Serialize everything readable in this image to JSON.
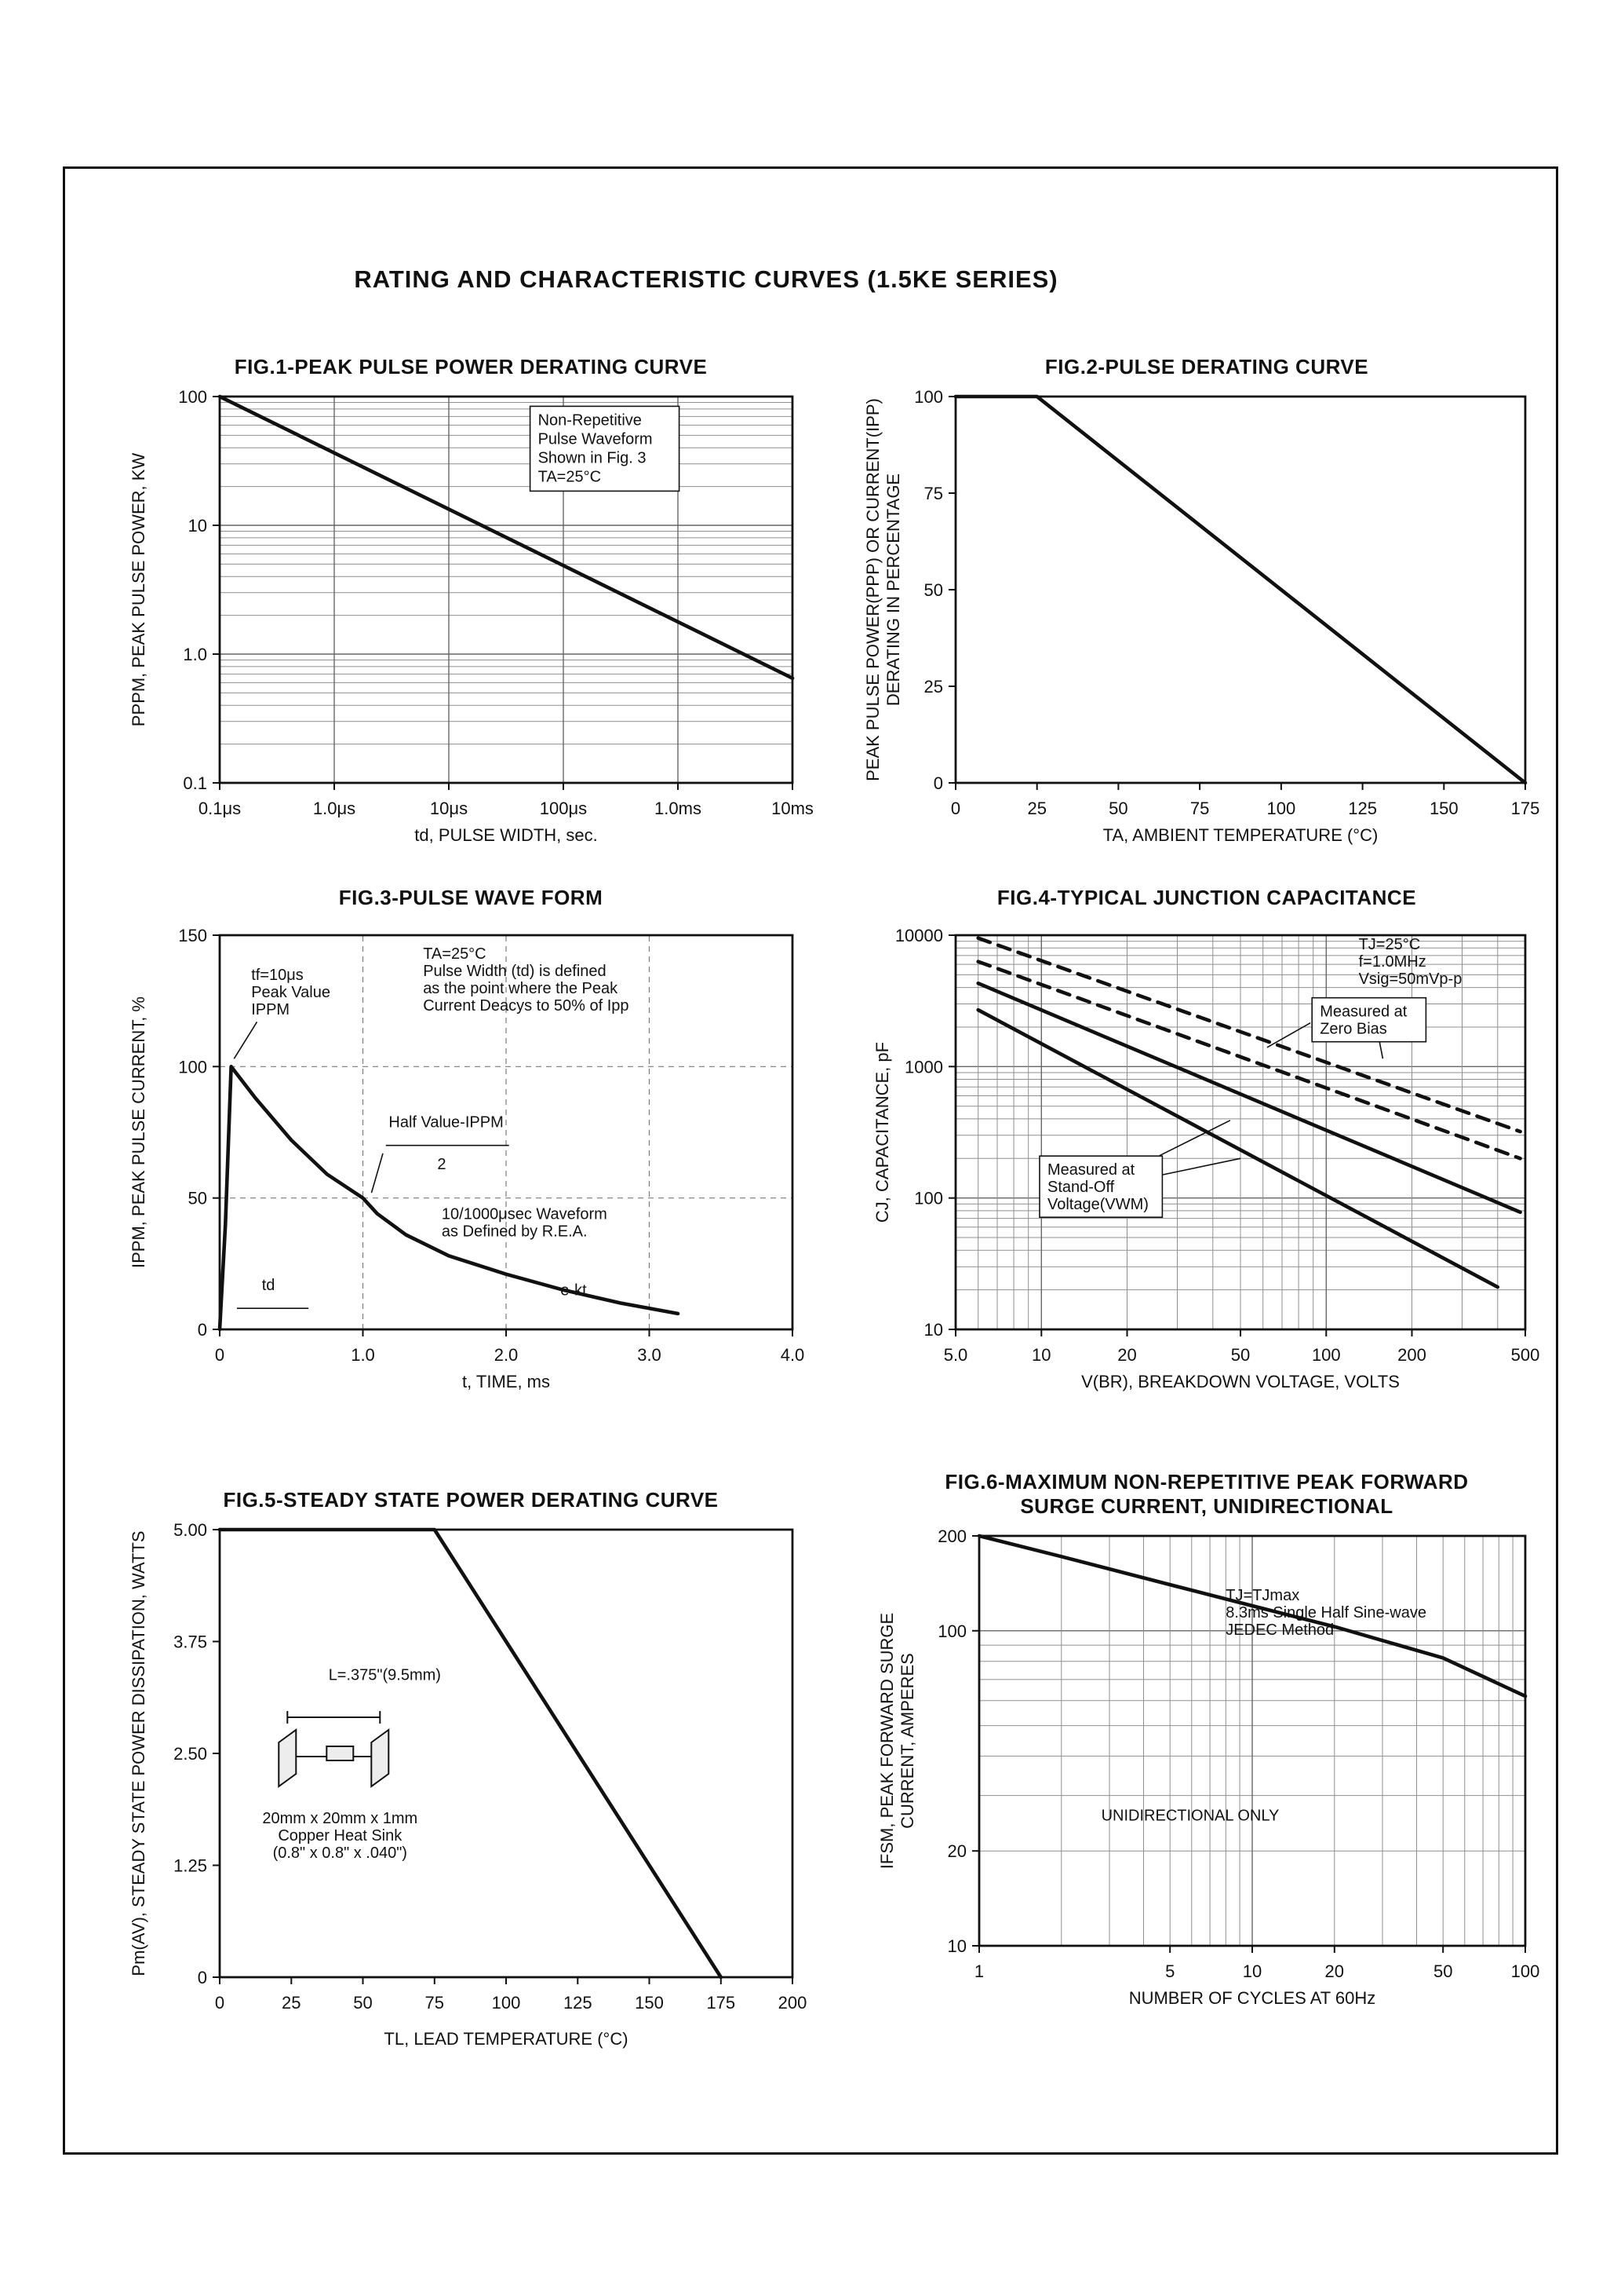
{
  "page_title": "RATING AND CHARACTERISTIC CURVES (1.5KE SERIES)",
  "chart_data": [
    {
      "id": "fig1",
      "type": "line",
      "title": "FIG.1-PEAK PULSE POWER DERATING CURVE",
      "xlabel": "td, PULSE WIDTH, sec.",
      "ylabel": "PPPM, PEAK PULSE POWER, KW",
      "xscale": "log",
      "yscale": "log",
      "xlim": [
        1e-07,
        0.01
      ],
      "ylim": [
        0.1,
        100
      ],
      "xticks": [
        {
          "v": 1e-07,
          "label": "0.1μs"
        },
        {
          "v": 1e-06,
          "label": "1.0μs"
        },
        {
          "v": 1e-05,
          "label": "10μs"
        },
        {
          "v": 0.0001,
          "label": "100μs"
        },
        {
          "v": 0.001,
          "label": "1.0ms"
        },
        {
          "v": 0.01,
          "label": "10ms"
        }
      ],
      "yticks": [
        {
          "v": 0.1,
          "label": "0.1"
        },
        {
          "v": 1,
          "label": "1.0"
        },
        {
          "v": 10,
          "label": "10"
        },
        {
          "v": 100,
          "label": "100"
        }
      ],
      "grid": {
        "x": "ticks",
        "y": "log"
      },
      "legend": "none",
      "series": [
        {
          "name": "peak-pulse-power-derating",
          "dash": false,
          "points": [
            [
              1e-07,
              100
            ],
            [
              0.01,
              0.65
            ]
          ]
        }
      ],
      "annotations": [
        {
          "text": "Non-Repetitive\nPulse Waveform\nShown in Fig. 3\nTA=25°C",
          "x": 6e-05,
          "y": 60,
          "anchor": "start",
          "box": true,
          "lh": 24
        }
      ]
    },
    {
      "id": "fig2",
      "type": "line",
      "title": "FIG.2-PULSE DERATING CURVE",
      "xlabel": "TA, AMBIENT TEMPERATURE (°C)",
      "ylabel": "PEAK PULSE POWER(PPP) OR CURRENT(IPP)\nDERATING IN PERCENTAGE",
      "xscale": "linear",
      "yscale": "linear",
      "xlim": [
        0,
        175
      ],
      "ylim": [
        0,
        100
      ],
      "xticks": [
        {
          "v": 0,
          "label": "0"
        },
        {
          "v": 25,
          "label": "25"
        },
        {
          "v": 50,
          "label": "50"
        },
        {
          "v": 75,
          "label": "75"
        },
        {
          "v": 100,
          "label": "100"
        },
        {
          "v": 125,
          "label": "125"
        },
        {
          "v": 150,
          "label": "150"
        },
        {
          "v": 175,
          "label": "175"
        }
      ],
      "yticks": [
        {
          "v": 0,
          "label": "0"
        },
        {
          "v": 25,
          "label": "25"
        },
        {
          "v": 50,
          "label": "50"
        },
        {
          "v": 75,
          "label": "75"
        },
        {
          "v": 100,
          "label": "100"
        }
      ],
      "grid": {},
      "legend": "none",
      "series": [
        {
          "name": "pulse-derating",
          "dash": false,
          "points": [
            [
              0,
              100
            ],
            [
              25,
              100
            ],
            [
              175,
              0
            ]
          ]
        }
      ],
      "annotations": []
    },
    {
      "id": "fig3",
      "type": "line",
      "title": "FIG.3-PULSE WAVE FORM",
      "xlabel": "t, TIME, ms",
      "ylabel": "IPPM, PEAK PULSE CURRENT, %",
      "xscale": "linear",
      "yscale": "linear",
      "xlim": [
        0,
        4.0
      ],
      "ylim": [
        0,
        150
      ],
      "xticks": [
        {
          "v": 0,
          "label": "0"
        },
        {
          "v": 1,
          "label": "1.0"
        },
        {
          "v": 2,
          "label": "2.0"
        },
        {
          "v": 3,
          "label": "3.0"
        },
        {
          "v": 4,
          "label": "4.0"
        }
      ],
      "yticks": [
        {
          "v": 0,
          "label": "0"
        },
        {
          "v": 50,
          "label": "50"
        },
        {
          "v": 100,
          "label": "100"
        },
        {
          "v": 150,
          "label": "150"
        }
      ],
      "grid": {
        "x": "dashed",
        "y": "dashed"
      },
      "legend": "none",
      "series": [
        {
          "name": "pulse-waveform",
          "dash": false,
          "points": [
            [
              0,
              0
            ],
            [
              0.04,
              40
            ],
            [
              0.08,
              100
            ],
            [
              0.25,
              88
            ],
            [
              0.5,
              72
            ],
            [
              0.75,
              59
            ],
            [
              1.0,
              50
            ],
            [
              1.1,
              44
            ],
            [
              1.3,
              36
            ],
            [
              1.6,
              28
            ],
            [
              2.0,
              21
            ],
            [
              2.4,
              15
            ],
            [
              2.8,
              10
            ],
            [
              3.2,
              6
            ]
          ]
        }
      ],
      "leaders": [
        {
          "p": [
            [
              0.26,
              117
            ],
            [
              0.1,
              103
            ]
          ]
        },
        {
          "p": [
            [
              0.12,
              8
            ],
            [
              0.62,
              8
            ]
          ]
        },
        {
          "p": [
            [
              1.16,
              70
            ],
            [
              2.02,
              70
            ]
          ]
        },
        {
          "p": [
            [
              1.14,
              67
            ],
            [
              1.06,
              52
            ]
          ]
        }
      ],
      "annotations": [
        {
          "text": "tf=10μs\nPeak Value\nIPPM",
          "x": 0.22,
          "y": 133,
          "anchor": "start",
          "lh": 22
        },
        {
          "text": "TA=25°C\nPulse Width (td) is defined\nas the point where the Peak\nCurrent Deacys to 50% of Ipp",
          "x": 1.42,
          "y": 141,
          "anchor": "start",
          "lh": 22
        },
        {
          "text": "Half Value-IPPM",
          "x": 1.18,
          "y": 77,
          "anchor": "start"
        },
        {
          "text": "2",
          "x": 1.52,
          "y": 61,
          "anchor": "start"
        },
        {
          "text": "10/1000μsec Waveform\nas Defined by R.E.A.",
          "x": 1.55,
          "y": 42,
          "anchor": "start",
          "lh": 22
        },
        {
          "text": "td",
          "x": 0.34,
          "y": 15,
          "anchor": "middle"
        },
        {
          "text": "e-kt",
          "x": 2.38,
          "y": 13,
          "anchor": "start"
        }
      ]
    },
    {
      "id": "fig4",
      "type": "line",
      "title": "FIG.4-TYPICAL JUNCTION CAPACITANCE",
      "xlabel": "V(BR), BREAKDOWN VOLTAGE, VOLTS",
      "ylabel": "CJ, CAPACITANCE, pF",
      "xscale": "log",
      "yscale": "log",
      "xlim": [
        5,
        500
      ],
      "ylim": [
        10,
        10000
      ],
      "xticks": [
        {
          "v": 5,
          "label": "5.0"
        },
        {
          "v": 10,
          "label": "10"
        },
        {
          "v": 20,
          "label": "20"
        },
        {
          "v": 50,
          "label": "50"
        },
        {
          "v": 100,
          "label": "100"
        },
        {
          "v": 200,
          "label": "200"
        },
        {
          "v": 500,
          "label": "500"
        }
      ],
      "yticks": [
        {
          "v": 10,
          "label": "10"
        },
        {
          "v": 100,
          "label": "100"
        },
        {
          "v": 1000,
          "label": "1000"
        },
        {
          "v": 10000,
          "label": "10000"
        }
      ],
      "grid": {
        "x": "log",
        "y": "log"
      },
      "legend": "none",
      "series": [
        {
          "name": "zero-bias-upper",
          "dash": true,
          "points": [
            [
              6,
              9500
            ],
            [
              480,
              320
            ]
          ]
        },
        {
          "name": "zero-bias-lower",
          "dash": true,
          "points": [
            [
              6,
              6300
            ],
            [
              480,
              200
            ]
          ]
        },
        {
          "name": "stand-off-upper",
          "dash": false,
          "points": [
            [
              6,
              4300
            ],
            [
              480,
              78
            ]
          ]
        },
        {
          "name": "stand-off-lower",
          "dash": false,
          "points": [
            [
              6,
              2700
            ],
            [
              400,
              21
            ]
          ]
        }
      ],
      "leaders": [
        {
          "p": [
            [
              88,
              2150
            ],
            [
              62,
              1400
            ]
          ]
        },
        {
          "p": [
            [
              150,
              2050
            ],
            [
              158,
              1150
            ]
          ]
        },
        {
          "p": [
            [
              26,
              210
            ],
            [
              46,
              390
            ]
          ]
        },
        {
          "p": [
            [
              21,
              135
            ],
            [
              50,
              200
            ]
          ]
        }
      ],
      "annotations": [
        {
          "text": "TJ=25°C\nf=1.0MHz\nVsig=50mVp-p",
          "x": 130,
          "y": 7800,
          "anchor": "start",
          "lh": 22
        },
        {
          "text": "Measured at\nZero Bias",
          "x": 95,
          "y": 2400,
          "anchor": "start",
          "box": true,
          "lh": 22
        },
        {
          "text": "Measured at\nStand-Off\nVoltage(VWM)",
          "x": 10.5,
          "y": 150,
          "anchor": "start",
          "box": true,
          "lh": 22
        }
      ]
    },
    {
      "id": "fig5",
      "type": "line",
      "title": "FIG.5-STEADY STATE POWER DERATING CURVE",
      "xlabel": "TL, LEAD TEMPERATURE (°C)",
      "ylabel": "Pm(AV), STEADY STATE POWER DISSIPATION, WATTS",
      "xscale": "linear",
      "yscale": "linear",
      "xlim": [
        0,
        200
      ],
      "ylim": [
        0,
        5
      ],
      "xticks": [
        {
          "v": 0,
          "label": "0"
        },
        {
          "v": 25,
          "label": "25"
        },
        {
          "v": 50,
          "label": "50"
        },
        {
          "v": 75,
          "label": "75"
        },
        {
          "v": 100,
          "label": "100"
        },
        {
          "v": 125,
          "label": "125"
        },
        {
          "v": 150,
          "label": "150"
        },
        {
          "v": 175,
          "label": "175"
        },
        {
          "v": 200,
          "label": "200"
        }
      ],
      "yticks": [
        {
          "v": 0,
          "label": "0"
        },
        {
          "v": 1.25,
          "label": "1.25"
        },
        {
          "v": 2.5,
          "label": "2.50"
        },
        {
          "v": 3.75,
          "label": "3.75"
        },
        {
          "v": 5,
          "label": "5.00"
        }
      ],
      "grid": {},
      "legend": "none",
      "series": [
        {
          "name": "steady-state-power-derating",
          "dash": false,
          "points": [
            [
              0,
              5
            ],
            [
              75,
              5
            ],
            [
              175,
              0
            ]
          ]
        }
      ],
      "drawing": {
        "type": "heatsink",
        "x": 42,
        "y": 2.5
      },
      "annotations": [
        {
          "text": "L=.375\"(9.5mm)",
          "x": 38,
          "y": 3.32,
          "anchor": "start"
        },
        {
          "text": "20mm x 20mm x 1mm\nCopper Heat Sink\n(0.8\" x 0.8\" x .040\")",
          "x": 42,
          "y": 1.72,
          "anchor": "middle",
          "lh": 22
        }
      ]
    },
    {
      "id": "fig6",
      "type": "line",
      "title": "FIG.6-MAXIMUM NON-REPETITIVE PEAK FORWARD\nSURGE CURRENT, UNIDIRECTIONAL",
      "xlabel": "NUMBER OF CYCLES AT 60Hz",
      "ylabel": "IFSM, PEAK FORWARD SURGE\nCURRENT, AMPERES",
      "xscale": "log",
      "yscale": "log",
      "xlim": [
        1,
        100
      ],
      "ylim": [
        10,
        200
      ],
      "xticks": [
        {
          "v": 1,
          "label": "1"
        },
        {
          "v": 5,
          "label": "5"
        },
        {
          "v": 10,
          "label": "10"
        },
        {
          "v": 20,
          "label": "20"
        },
        {
          "v": 50,
          "label": "50"
        },
        {
          "v": 100,
          "label": "100"
        }
      ],
      "yticks": [
        {
          "v": 10,
          "label": "10"
        },
        {
          "v": 20,
          "label": "20"
        },
        {
          "v": 100,
          "label": "100"
        },
        {
          "v": 200,
          "label": "200"
        }
      ],
      "grid": {
        "x": "log",
        "y": "log"
      },
      "legend": "none",
      "series": [
        {
          "name": "peak-forward-surge-current",
          "dash": false,
          "points": [
            [
              1,
              200
            ],
            [
              2,
              172
            ],
            [
              5,
              140
            ],
            [
              10,
              120
            ],
            [
              20,
              103
            ],
            [
              50,
              82
            ],
            [
              100,
              62
            ]
          ]
        }
      ],
      "annotations": [
        {
          "text": "TJ=TJmax\n8.3ms Single Half Sine-wave\nJEDEC Method",
          "x": 8,
          "y": 125,
          "anchor": "start",
          "lh": 22
        },
        {
          "text": "UNIDIRECTIONAL ONLY",
          "x": 2.8,
          "y": 25,
          "anchor": "start"
        }
      ]
    }
  ]
}
